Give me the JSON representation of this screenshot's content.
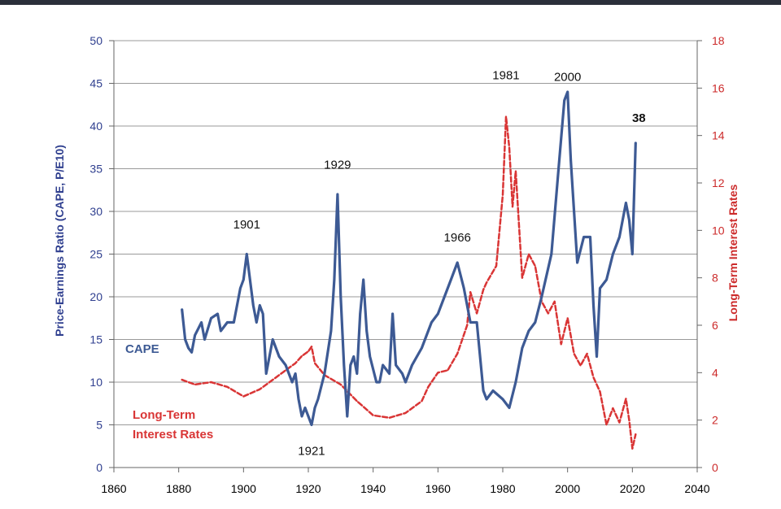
{
  "chart_data": {
    "type": "line",
    "x_range": [
      1860,
      2040
    ],
    "x_ticks": [
      "1860",
      "1880",
      "1900",
      "1920",
      "1940",
      "1960",
      "1980",
      "2000",
      "2020",
      "2040"
    ],
    "y_left": {
      "label": "Price-Earnings Ratio (CAPE, P/E10)",
      "range": [
        0,
        50
      ],
      "ticks": [
        "0",
        "5",
        "10",
        "15",
        "20",
        "25",
        "30",
        "35",
        "40",
        "45",
        "50"
      ]
    },
    "y_right": {
      "label": "Long-Term Interest Rates",
      "range": [
        0,
        18
      ],
      "ticks": [
        "0",
        "2",
        "4",
        "6",
        "8",
        "10",
        "12",
        "14",
        "16",
        "18"
      ]
    },
    "grid": true,
    "colors": {
      "cape": "#3d5a94",
      "rates": "#d93535",
      "left_axis_text": "#2f3f8f",
      "right_axis_text": "#cc2a2a"
    },
    "series": [
      {
        "name": "CAPE",
        "axis": "left",
        "style": "solid",
        "x": [
          1881,
          1882,
          1883,
          1884,
          1885,
          1887,
          1888,
          1890,
          1892,
          1893,
          1895,
          1897,
          1899,
          1900,
          1901,
          1902,
          1903,
          1904,
          1905,
          1906,
          1907,
          1909,
          1911,
          1913,
          1915,
          1916,
          1917,
          1918,
          1919,
          1920,
          1921,
          1922,
          1923,
          1925,
          1927,
          1928,
          1929,
          1930,
          1931,
          1932,
          1933,
          1934,
          1935,
          1936,
          1937,
          1938,
          1939,
          1941,
          1942,
          1943,
          1945,
          1946,
          1947,
          1949,
          1950,
          1952,
          1955,
          1958,
          1960,
          1962,
          1964,
          1966,
          1968,
          1970,
          1972,
          1974,
          1975,
          1977,
          1980,
          1982,
          1984,
          1986,
          1988,
          1990,
          1992,
          1995,
          1997,
          1999,
          2000,
          2001,
          2002,
          2003,
          2005,
          2007,
          2008,
          2009,
          2010,
          2012,
          2014,
          2016,
          2018,
          2019,
          2020,
          2021
        ],
        "values": [
          18.5,
          15,
          14,
          13.5,
          15.5,
          17,
          15,
          17.5,
          18,
          16,
          17,
          17,
          21,
          22,
          25,
          22,
          19,
          17,
          19,
          18,
          11,
          15,
          13,
          12,
          10,
          11,
          8,
          6,
          7,
          6,
          5,
          7,
          8,
          11,
          16,
          22,
          32,
          20,
          12,
          6,
          12,
          13,
          11,
          18,
          22,
          16,
          13,
          10,
          10,
          12,
          11,
          18,
          12,
          11,
          10,
          12,
          14,
          17,
          18,
          20,
          22,
          24,
          21,
          17,
          17,
          9,
          8,
          9,
          8,
          7,
          10,
          14,
          16,
          17,
          20,
          25,
          34,
          43,
          44,
          36,
          30,
          24,
          27,
          27,
          19,
          13,
          21,
          22,
          25,
          27,
          31,
          29,
          25,
          38
        ]
      },
      {
        "name": "Long-Term Interest Rates",
        "axis": "right",
        "style": "dashed",
        "x": [
          1881,
          1885,
          1890,
          1895,
          1900,
          1905,
          1910,
          1913,
          1916,
          1918,
          1920,
          1921,
          1922,
          1925,
          1930,
          1935,
          1940,
          1945,
          1950,
          1955,
          1957,
          1960,
          1963,
          1966,
          1969,
          1970,
          1972,
          1974,
          1975,
          1978,
          1980,
          1981,
          1982,
          1983,
          1984,
          1986,
          1988,
          1990,
          1992,
          1994,
          1996,
          1998,
          2000,
          2002,
          2004,
          2006,
          2008,
          2010,
          2012,
          2014,
          2016,
          2018,
          2019,
          2020,
          2021
        ],
        "values": [
          3.7,
          3.5,
          3.6,
          3.4,
          3.0,
          3.3,
          3.8,
          4.1,
          4.4,
          4.7,
          4.9,
          5.1,
          4.4,
          3.9,
          3.5,
          2.8,
          2.2,
          2.1,
          2.3,
          2.8,
          3.4,
          4.0,
          4.1,
          4.8,
          6.0,
          7.4,
          6.5,
          7.5,
          7.8,
          8.5,
          11.5,
          14.8,
          13.5,
          11.0,
          12.5,
          8.0,
          9.0,
          8.5,
          7.0,
          6.5,
          7.0,
          5.2,
          6.3,
          4.8,
          4.3,
          4.8,
          3.8,
          3.2,
          1.8,
          2.5,
          1.9,
          2.9,
          2.0,
          0.8,
          1.4
        ]
      }
    ],
    "annotations": [
      {
        "text": "1901",
        "x": 1901,
        "y": 28.0
      },
      {
        "text": "1929",
        "x": 1929,
        "y": 35.0
      },
      {
        "text": "1921",
        "x": 1921,
        "y": 1.5
      },
      {
        "text": "1966",
        "x": 1966,
        "y": 26.5
      },
      {
        "text": "1981",
        "x": 1981,
        "y": 45.5
      },
      {
        "text": "2000",
        "x": 2000,
        "y": 45.3
      },
      {
        "text": "38",
        "x": 2022,
        "y": 40.5,
        "bold": true,
        "color": "#1f3a7a"
      }
    ],
    "legend": [
      {
        "text": "CAPE",
        "color": "#3d5a94",
        "position": "left-middle"
      },
      {
        "text": "Long-Term",
        "color": "#d93535",
        "position": "left-lower"
      },
      {
        "text": "Interest Rates",
        "color": "#d93535",
        "position": "left-lower"
      }
    ]
  }
}
